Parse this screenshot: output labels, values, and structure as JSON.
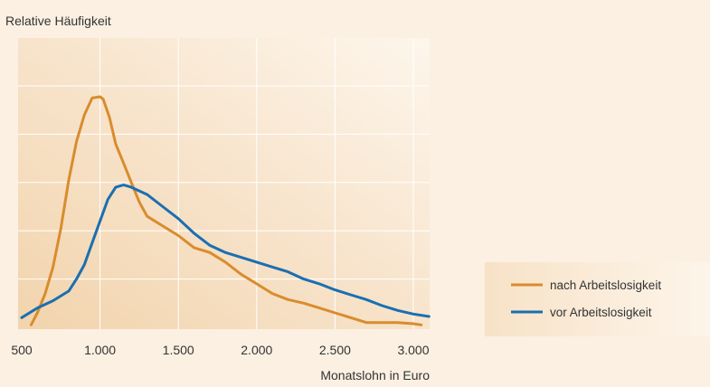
{
  "chart_data": {
    "type": "line",
    "ylabel": "Relative Häufigkeit",
    "xlabel": "Monatslohn in Euro",
    "xlim": [
      500,
      3100
    ],
    "ylim": [
      0,
      1
    ],
    "x_ticks": [
      500,
      1000,
      1500,
      2000,
      2500,
      3000
    ],
    "x_tick_labels": [
      "500",
      "1.000",
      "1.500",
      "2.000",
      "2.500",
      "3.000"
    ],
    "grid": true,
    "legend_position": "bottom-right",
    "series": [
      {
        "name": "nach Arbeitslosigkeit",
        "color": "#d98c2e",
        "x": [
          560,
          600,
          650,
          700,
          750,
          800,
          850,
          900,
          950,
          1000,
          1020,
          1060,
          1100,
          1150,
          1200,
          1250,
          1300,
          1400,
          1500,
          1600,
          1700,
          1800,
          1900,
          2000,
          2100,
          2200,
          2300,
          2400,
          2500,
          2600,
          2700,
          2800,
          2900,
          3000,
          3050
        ],
        "y": [
          0.01,
          0.06,
          0.14,
          0.25,
          0.41,
          0.61,
          0.77,
          0.88,
          0.95,
          0.955,
          0.945,
          0.87,
          0.76,
          0.68,
          0.6,
          0.52,
          0.46,
          0.42,
          0.38,
          0.33,
          0.31,
          0.27,
          0.22,
          0.18,
          0.14,
          0.115,
          0.1,
          0.08,
          0.06,
          0.04,
          0.02,
          0.02,
          0.02,
          0.015,
          0.01
        ]
      },
      {
        "name": "vor Arbeitslosigkeit",
        "color": "#1a6fb1",
        "x": [
          500,
          600,
          700,
          800,
          850,
          900,
          950,
          1000,
          1050,
          1100,
          1150,
          1200,
          1300,
          1400,
          1500,
          1600,
          1700,
          1800,
          1900,
          2000,
          2100,
          2200,
          2300,
          2400,
          2500,
          2600,
          2700,
          2800,
          2900,
          3000,
          3100
        ],
        "y": [
          0.04,
          0.08,
          0.11,
          0.15,
          0.2,
          0.26,
          0.35,
          0.44,
          0.53,
          0.58,
          0.59,
          0.58,
          0.55,
          0.5,
          0.45,
          0.39,
          0.34,
          0.31,
          0.29,
          0.27,
          0.25,
          0.23,
          0.2,
          0.18,
          0.155,
          0.135,
          0.115,
          0.09,
          0.07,
          0.055,
          0.045
        ]
      }
    ]
  }
}
